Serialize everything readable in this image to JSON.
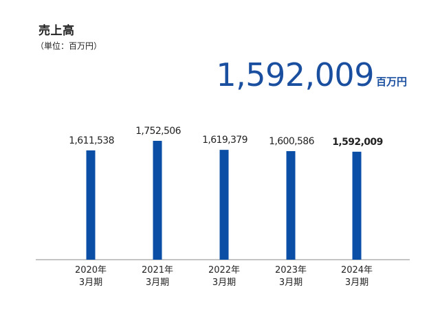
{
  "title": "売上高",
  "unit_note": "（単位：百万円）",
  "headline": {
    "value": "1,592,009",
    "unit": "百万円"
  },
  "colors": {
    "bar": "#0a4ea6",
    "headline": "#1a4fa0",
    "axis": "#888888"
  },
  "chart_data": {
    "type": "bar",
    "categories": [
      [
        "2020年",
        "3月期"
      ],
      [
        "2021年",
        "3月期"
      ],
      [
        "2022年",
        "3月期"
      ],
      [
        "2023年",
        "3月期"
      ],
      [
        "2024年",
        "3月期"
      ]
    ],
    "values": [
      1611538,
      1752506,
      1619379,
      1600586,
      1592009
    ],
    "value_labels": [
      "1,611,538",
      "1,752,506",
      "1,619,379",
      "1,600,586",
      "1,592,009"
    ],
    "title": "売上高",
    "ylabel": "",
    "xlabel": "",
    "grid": false,
    "ylim": [
      0,
      1900000
    ]
  }
}
